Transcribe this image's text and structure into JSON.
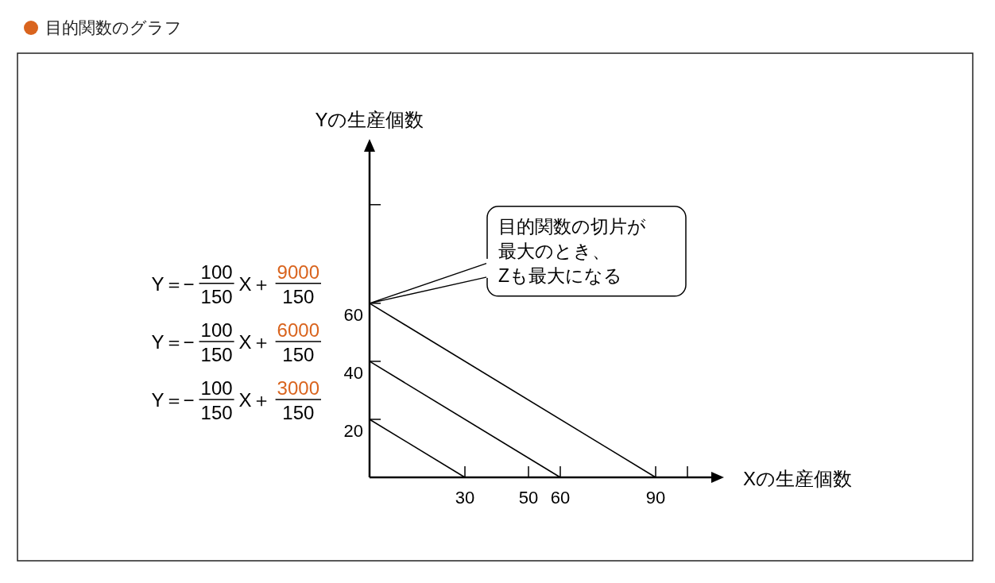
{
  "chart_data": {
    "type": "line",
    "title": "目的関数のグラフ",
    "xlabel": "Xの生産個数",
    "ylabel": "Yの生産個数",
    "series": [
      {
        "color": "#000000",
        "x": [
          0,
          30
        ],
        "values": [
          20,
          0
        ]
      },
      {
        "color": "#000000",
        "x": [
          0,
          60
        ],
        "values": [
          40,
          0
        ]
      },
      {
        "color": "#000000",
        "x": [
          0,
          90
        ],
        "values": [
          60,
          0
        ]
      }
    ],
    "xlim": [
      0,
      110
    ],
    "ylim": [
      0,
      115
    ],
    "xticks": [
      30,
      50,
      60,
      90,
      {
        "value": 100,
        "label": null
      }
    ],
    "yticks": [
      20,
      40,
      60,
      {
        "value": 94,
        "label": null
      }
    ],
    "line_style": "solid",
    "annotations": [
      "Y＝−",
      "100",
      "150",
      "X＋",
      "9000",
      "150",
      "Y＝−",
      "100",
      "150",
      "X＋",
      "6000",
      "150",
      "Y＝−",
      "100",
      "150",
      "X＋",
      "3000",
      "150",
      "目的関数の切片が",
      "最大のとき、",
      "Zも最大になる"
    ]
  }
}
